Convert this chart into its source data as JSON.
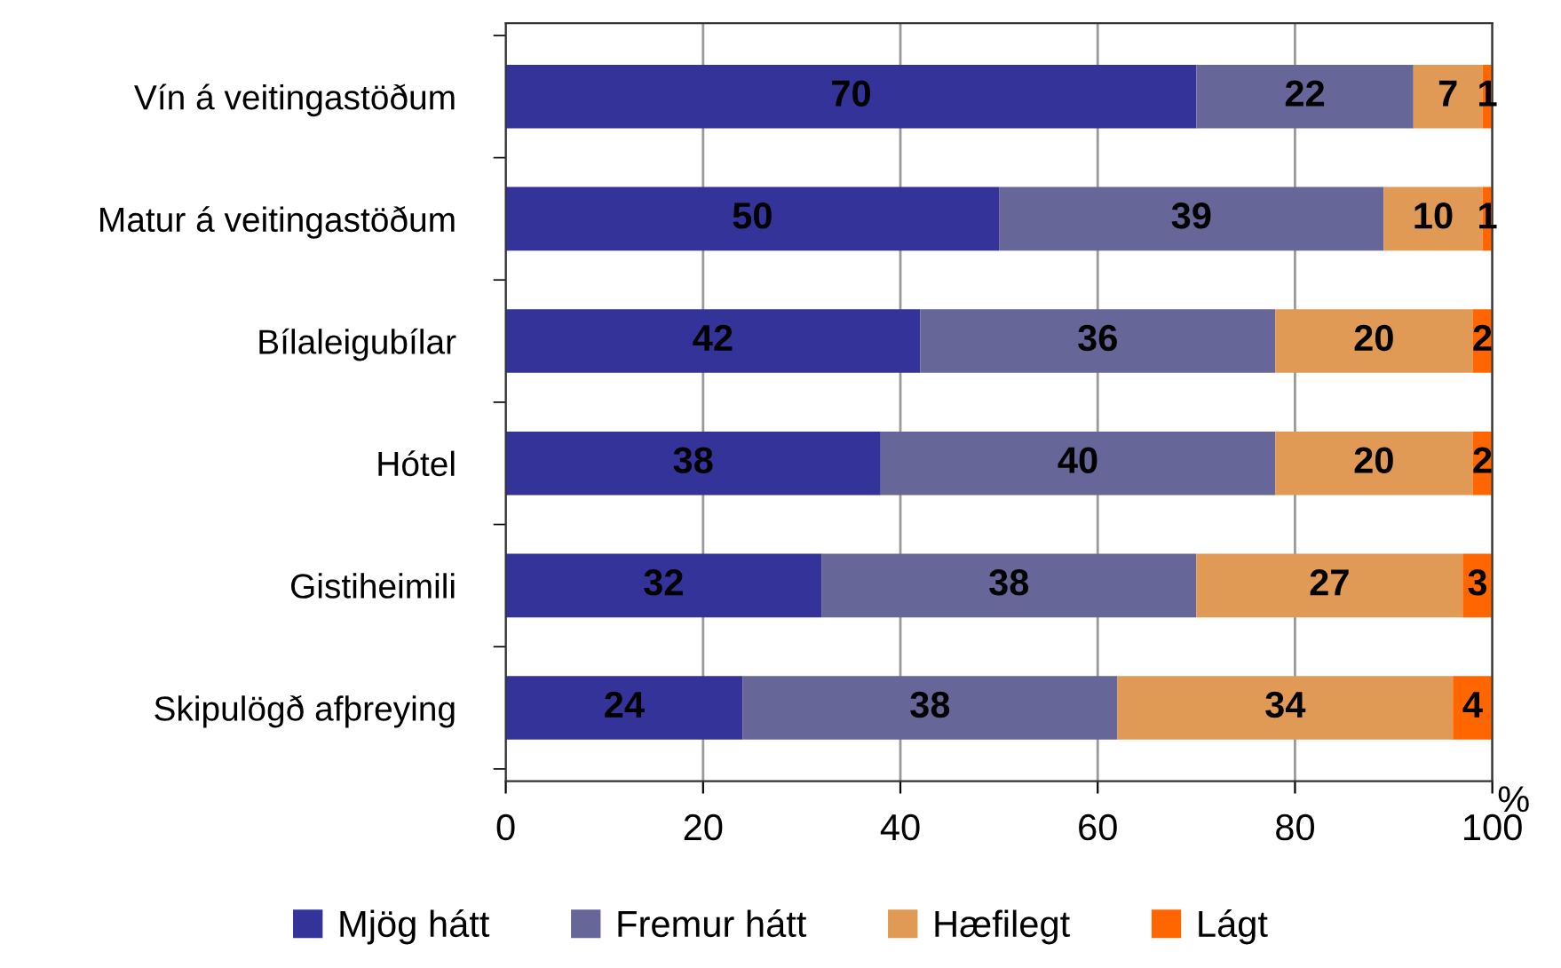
{
  "chart_data": {
    "type": "bar",
    "orientation": "horizontal",
    "stacked": true,
    "data_labels": true,
    "xlabel": "%",
    "categories": [
      "Vín á veitingastöðum",
      "Matur á veitingastöðum",
      "Bílaleigubílar",
      "Hótel",
      "Gistiheimili",
      "Skipulögð afþreying"
    ],
    "series": [
      {
        "name": "Mjög hátt",
        "color": "#333399",
        "values": [
          70,
          50,
          42,
          38,
          32,
          24
        ]
      },
      {
        "name": "Fremur hátt",
        "color": "#666699",
        "values": [
          22,
          39,
          36,
          40,
          38,
          38
        ]
      },
      {
        "name": "Hæfilegt",
        "color": "#e09a55",
        "values": [
          7,
          10,
          20,
          20,
          27,
          34
        ]
      },
      {
        "name": "Lágt",
        "color": "#ff6600",
        "values": [
          1,
          1,
          2,
          2,
          3,
          4
        ]
      }
    ],
    "xlim": [
      0,
      100
    ],
    "xticks": [
      0,
      20,
      40,
      60,
      80,
      100
    ],
    "grid": "x",
    "legend": "bottom"
  }
}
